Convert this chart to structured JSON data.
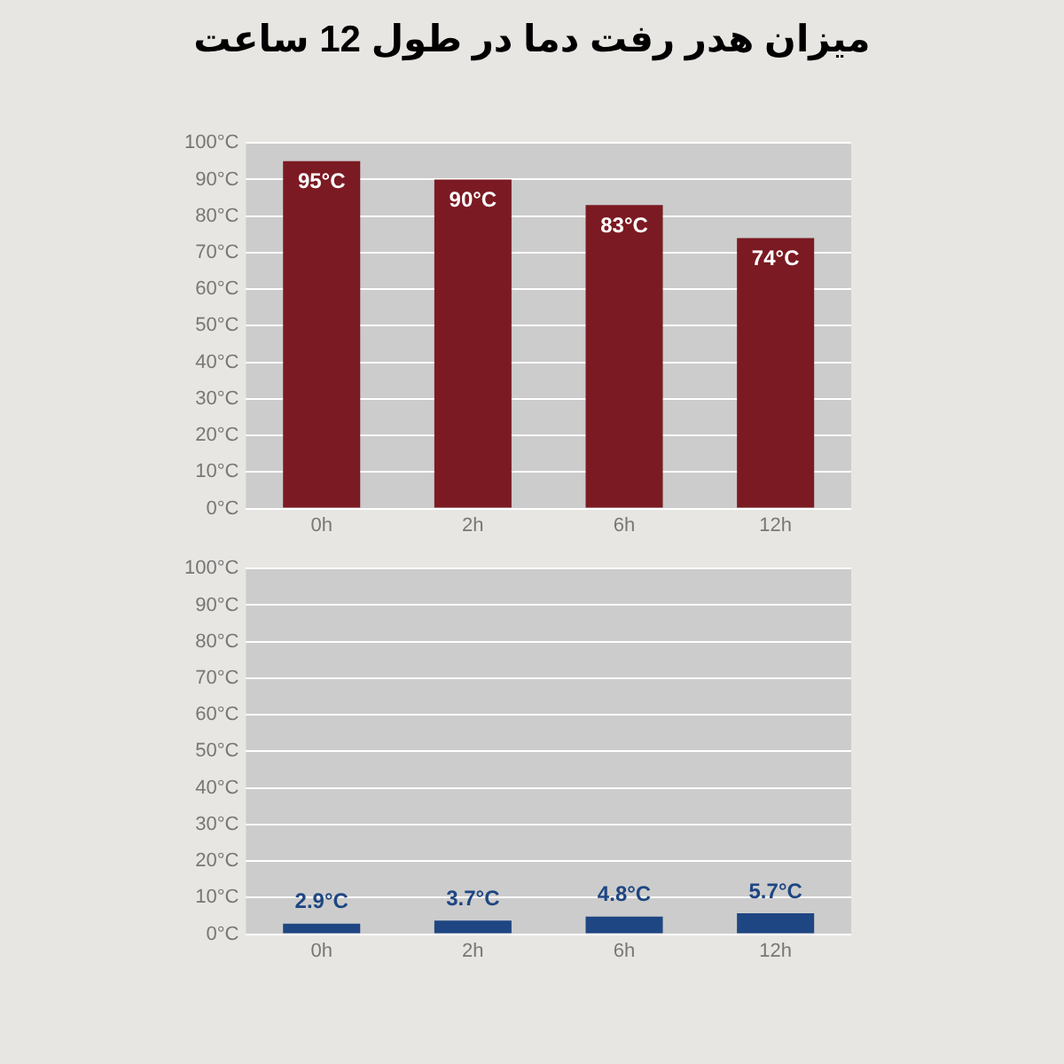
{
  "chart_data": [
    {
      "type": "bar",
      "title": "میزان هدر رفت دما در طول 12 ساعت",
      "categories": [
        "0h",
        "2h",
        "6h",
        "12h"
      ],
      "values": [
        95,
        90,
        83,
        74
      ],
      "color": "#7b1a22",
      "ylim": [
        0,
        100
      ],
      "yticks": [
        {
          "value": 0,
          "label": "0°C"
        },
        {
          "value": 10,
          "label": "10°C"
        },
        {
          "value": 20,
          "label": "20°C"
        },
        {
          "value": 30,
          "label": "30°C"
        },
        {
          "value": 40,
          "label": "40°C"
        },
        {
          "value": 50,
          "label": "50°C"
        },
        {
          "value": 60,
          "label": "60°C"
        },
        {
          "value": 70,
          "label": "70°C"
        },
        {
          "value": 80,
          "label": "80°C"
        },
        {
          "value": 90,
          "label": "90°C"
        },
        {
          "value": 100,
          "label": "100°C"
        }
      ],
      "grid": "y",
      "legend": false,
      "value_labels": [
        "95°C",
        "90°C",
        "83°C",
        "74°C"
      ]
    },
    {
      "type": "bar",
      "categories": [
        "0h",
        "2h",
        "6h",
        "12h"
      ],
      "values": [
        2.9,
        3.7,
        4.8,
        5.7
      ],
      "color": "#1e4682",
      "ylim": [
        0,
        100
      ],
      "yticks": [
        {
          "value": 0,
          "label": "0°C"
        },
        {
          "value": 10,
          "label": "10°C"
        },
        {
          "value": 20,
          "label": "20°C"
        },
        {
          "value": 30,
          "label": "30°C"
        },
        {
          "value": 40,
          "label": "40°C"
        },
        {
          "value": 50,
          "label": "50°C"
        },
        {
          "value": 60,
          "label": "60°C"
        },
        {
          "value": 70,
          "label": "70°C"
        },
        {
          "value": 80,
          "label": "80°C"
        },
        {
          "value": 90,
          "label": "90°C"
        },
        {
          "value": 100,
          "label": "100°C"
        }
      ],
      "grid": "y",
      "legend": false,
      "value_labels": [
        "2.9°C",
        "3.7°C",
        "4.8°C",
        "5.7°C"
      ]
    }
  ]
}
